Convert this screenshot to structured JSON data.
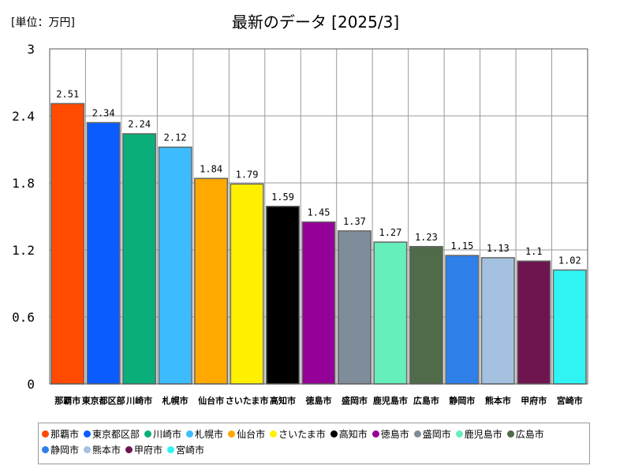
{
  "header": {
    "title": "最新のデータ [2025/3]",
    "unit": "[単位：万円]"
  },
  "chart_data": {
    "type": "bar",
    "title": "最新のデータ [2025/3]",
    "unit": "[単位：万円]",
    "xlabel": "",
    "ylabel": "",
    "ylim": [
      0,
      3
    ],
    "yticks": [
      "0",
      "0.6",
      "1.2",
      "1.8",
      "2.4",
      "3"
    ],
    "grid": true,
    "legend_position": "bottom",
    "categories": [
      "那覇市",
      "東京都区部",
      "川崎市",
      "札幌市",
      "仙台市",
      "さいたま市",
      "高知市",
      "徳島市",
      "盛岡市",
      "鹿児島市",
      "広島市",
      "静岡市",
      "熊本市",
      "甲府市",
      "宮崎市"
    ],
    "values": [
      2.51,
      2.34,
      2.24,
      2.12,
      1.84,
      1.79,
      1.59,
      1.45,
      1.37,
      1.27,
      1.23,
      1.15,
      1.13,
      1.1,
      1.02
    ],
    "value_labels": [
      "2.51",
      "2.34",
      "2.24",
      "2.12",
      "1.84",
      "1.79",
      "1.59",
      "1.45",
      "1.37",
      "1.27",
      "1.23",
      "1.15",
      "1.13",
      "1.1",
      "1.02"
    ],
    "colors": [
      "#ff4a00",
      "#0a5cff",
      "#0aae7a",
      "#3cbcff",
      "#ffa800",
      "#fff000",
      "#000000",
      "#950098",
      "#7f8c99",
      "#66eebb",
      "#4f6b49",
      "#2f80e8",
      "#a4c2e0",
      "#6e1550",
      "#30f4f4"
    ]
  }
}
